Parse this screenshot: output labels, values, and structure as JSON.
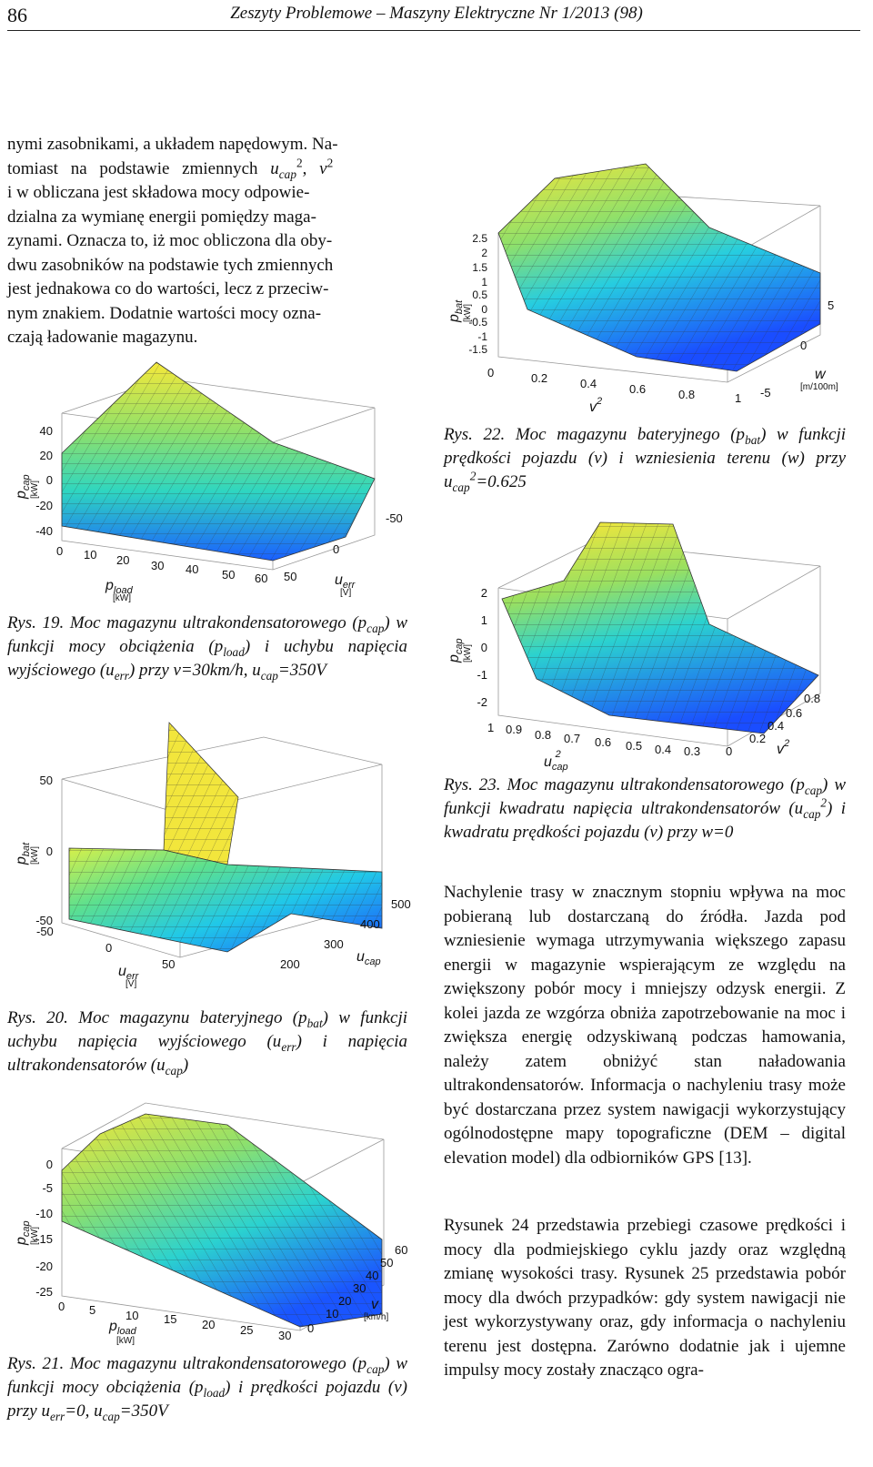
{
  "header": {
    "page_number": "86",
    "journal": "Zeszyty Problemowe – Maszyny Elektryczne Nr 1/2013 (98)"
  },
  "left_intro": {
    "l1": "nymi zasobnikami, a układem napędowym. Na-",
    "l2a": "tomiast na podstawie zmiennych ",
    "l2u": "u",
    "l2sub": "cap",
    "l2sup": "2",
    "l2b": ", ",
    "l2v": "v",
    "l2vsup": "2",
    "l3": "i w obliczana jest składowa mocy odpowie-",
    "l4": "dzialna za wymianę energii pomiędzy maga-",
    "l5": "zynami. Oznacza to, iż moc obliczona dla oby-",
    "l6": "dwu zasobników na podstawie tych zmiennych",
    "l7": "jest jednakowa co do wartości, lecz z przeciw-",
    "l8": "nym znakiem. Dodatnie wartości mocy ozna-",
    "l9": "czają ładowanie magazynu."
  },
  "fig19": {
    "zticks": [
      "40",
      "20",
      "0",
      "-20",
      "-40"
    ],
    "xticks": [
      "0",
      "10",
      "20",
      "30",
      "40",
      "50",
      "60"
    ],
    "yticks": [
      "50",
      "0",
      "-50"
    ],
    "zlabel": "p",
    "zsub": "cap",
    "zunit": "[kW]",
    "xlabel": "p",
    "xsub": "load",
    "xunit": "[kW]",
    "ylabel": "u",
    "ysub": "err",
    "yunit": "[V]",
    "caption": {
      "a": "Rys. 19. Moc magazynu ultrakondensatorowego (p",
      "s1": "cap",
      "b": ") w funkcji mocy obciążenia (p",
      "s2": "load",
      "c": ") i uchybu napięcia wyjściowego (u",
      "s3": "err",
      "d": ") przy v=30km/h, u",
      "s4": "cap",
      "e": "=350V"
    }
  },
  "fig20": {
    "zticks": [
      "50",
      "0",
      "-50"
    ],
    "uticks": [
      "-50",
      "0",
      "50"
    ],
    "cticks": [
      "200",
      "300",
      "400",
      "500"
    ],
    "zlabel": "p",
    "zsub": "bat",
    "zunit": "[kW]",
    "ulabel": "u",
    "usub": "err",
    "uunit": "[V]",
    "clabel": "u",
    "csub": "cap",
    "caption": {
      "a": "Rys. 20. Moc magazynu bateryjnego (p",
      "s1": "bat",
      "b": ") w funkcji uchybu napięcia wyjściowego (u",
      "s2": "err",
      "c": ") i napięcia ultrakondensatorów (u",
      "s3": "cap",
      "d": ")"
    }
  },
  "fig21": {
    "zticks": [
      "0",
      "-5",
      "-10",
      "-15",
      "-20",
      "-25"
    ],
    "xticks": [
      "0",
      "5",
      "10",
      "15",
      "20",
      "25",
      "30"
    ],
    "vticks": [
      "0",
      "10",
      "20",
      "30",
      "40",
      "50",
      "60"
    ],
    "zlabel": "p",
    "zsub": "cap",
    "zunit": "[kW]",
    "xlabel": "p",
    "xsub": "load",
    "xunit": "[kW]",
    "vlabel": "v",
    "vunit": "[km/h]",
    "caption": {
      "a": "Rys. 21. Moc magazynu ultrakondensatorowego (p",
      "s1": "cap",
      "b": ") w funkcji mocy obciążenia (p",
      "s2": "load",
      "c": ") i prędkości pojazdu (v) przy u",
      "s3": "err",
      "d": "=0, u",
      "s4": "cap",
      "e": "=350V"
    }
  },
  "fig22": {
    "zticks": [
      "2.5",
      "2",
      "1.5",
      "1",
      "0.5",
      "0",
      "-0.5",
      "-1",
      "-1.5"
    ],
    "xticks": [
      "0",
      "0.2",
      "0.4",
      "0.6",
      "0.8",
      "1"
    ],
    "wticks": [
      "5",
      "0",
      "-5"
    ],
    "zlabel": "p",
    "zsub": "bat",
    "zunit": "[kW]",
    "xlabel": "v",
    "xsup": "2",
    "wlabel": "w",
    "wunit": "[m/100m]",
    "caption": {
      "a": "Rys. 22. Moc magazynu bateryjnego (p",
      "s1": "bat",
      "b": ") w funkcji prędkości pojazdu (v) i wzniesienia terenu (w) przy u",
      "s2": "cap",
      "sup": "2",
      "c": "=0.625"
    }
  },
  "fig23": {
    "zticks": [
      "2",
      "1",
      "0",
      "-1",
      "-2"
    ],
    "uticks": [
      "1",
      "0.9",
      "0.8",
      "0.7",
      "0.6",
      "0.5",
      "0.4",
      "0.3"
    ],
    "vticks": [
      "0",
      "0.2",
      "0.4",
      "0.6",
      "0.8"
    ],
    "zlabel": "p",
    "zsub": "cap",
    "zunit": "[kW]",
    "ulabel": "u",
    "usub": "cap",
    "usup": "2",
    "vlabel": "v",
    "vsup": "2",
    "caption": {
      "a": "Rys. 23. Moc magazynu ultrakondensatorowego (p",
      "s1": "cap",
      "b": ") w funkcji kwadratu napięcia ultrakondensatorów (u",
      "s2": "cap",
      "sup": "2",
      "c": ") i kwadratu prędkości pojazdu (v) przy w=0"
    }
  },
  "right_text": {
    "p1": "Nachylenie trasy w znacznym stopniu wpływa na moc pobieraną lub dostarczaną do źródła. Jazda pod wzniesienie wymaga utrzymywania większego zapasu energii w magazynie wspierającym ze względu na zwiększony pobór mocy i mniejszy odzysk energii. Z kolei jazda ze wzgórza obniża zapotrzebowanie na moc i zwiększa energię odzyskiwaną podczas hamowania, należy zatem obniżyć stan naładowania ultrakondensatorów. Informacja o nachyleniu trasy może być dostarczana przez system nawigacji wykorzystujący ogólnodostępne mapy topograficzne (DEM – digital elevation model) dla odbiorników GPS [13].",
    "p2": "Rysunek 24 przedstawia przebiegi czasowe prędkości i mocy dla podmiejskiego cyklu jazdy oraz względną zmianę wysokości trasy. Rysunek 25 przedstawia pobór mocy dla dwóch przypadków: gdy system nawigacji nie jest wykorzystywany oraz, gdy informacja o nachyleniu terenu jest dostępna. Zarówno dodatnie jak i ujemne impulsy mocy zostały znacząco ogra-"
  }
}
